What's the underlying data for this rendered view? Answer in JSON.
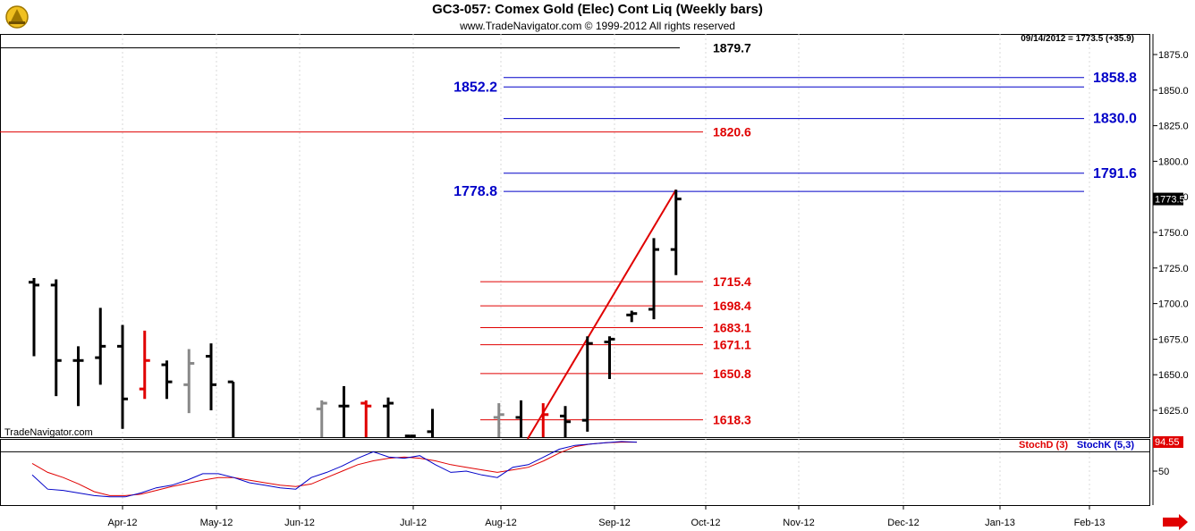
{
  "header": {
    "title": "GC3-057:  Comex Gold (Elec) Cont Liq  (Weekly bars)",
    "copyright": "www.TradeNavigator.com © 1999-2012 All rights reserved",
    "quote_info": "09/14/2012 = 1773.5 (+35.9)",
    "watermark": "TradeNavigator.com"
  },
  "colors": {
    "up_bar": "#000000",
    "red_bar": "#e00000",
    "gray_bar": "#888888",
    "fib_red": "#e00000",
    "fib_blue": "#0000c8",
    "stochD": "#e00000",
    "stochK": "#0000c8",
    "grid": "#d8d8d8"
  },
  "chart_data": [
    {
      "type": "ohlc",
      "title": "GC3-057:  Comex Gold (Elec) Cont Liq  (Weekly bars)",
      "y_axis": {
        "ticks": [
          "1875.0",
          "1850.0",
          "1825.0",
          "1800.0",
          "1775.0",
          "1750.0",
          "1725.0",
          "1700.0",
          "1675.0",
          "1650.0",
          "1625.0"
        ],
        "range": [
          1605,
          1890
        ],
        "last_price_label": "1773.5"
      },
      "x_axis": {
        "labels": [
          "Apr-12",
          "May-12",
          "Jun-12",
          "Jul-12",
          "Aug-12",
          "Sep-12",
          "Oct-12",
          "Nov-12",
          "Dec-12",
          "Jan-13",
          "Feb-13"
        ]
      },
      "bars": [
        {
          "w": 0,
          "o": 1715,
          "h": 1718,
          "l": 1663,
          "c": 1713,
          "color": "black"
        },
        {
          "w": 1,
          "o": 1713,
          "h": 1717,
          "l": 1635,
          "c": 1660,
          "color": "black"
        },
        {
          "w": 2,
          "o": 1660,
          "h": 1670,
          "l": 1628,
          "c": 1660,
          "color": "black"
        },
        {
          "w": 3,
          "o": 1662,
          "h": 1697,
          "l": 1643,
          "c": 1670,
          "color": "black"
        },
        {
          "w": 4,
          "o": 1670,
          "h": 1685,
          "l": 1612,
          "c": 1633,
          "color": "black"
        },
        {
          "w": 5,
          "o": 1640,
          "h": 1681,
          "l": 1633,
          "c": 1660,
          "color": "red"
        },
        {
          "w": 6,
          "o": 1657,
          "h": 1660,
          "l": 1633,
          "c": 1645,
          "color": "black"
        },
        {
          "w": 7,
          "o": 1643,
          "h": 1668,
          "l": 1623,
          "c": 1658,
          "color": "gray"
        },
        {
          "w": 8,
          "o": 1663,
          "h": 1672,
          "l": 1625,
          "c": 1643,
          "color": "black"
        },
        {
          "w": 9,
          "o": 1645,
          "h": 1645,
          "l": 1605,
          "c": 1605,
          "color": "black"
        },
        {
          "w": 13,
          "o": 1626,
          "h": 1632,
          "l": 1605,
          "c": 1630,
          "color": "gray"
        },
        {
          "w": 14,
          "o": 1628,
          "h": 1642,
          "l": 1605,
          "c": 1628,
          "color": "black"
        },
        {
          "w": 15,
          "o": 1630,
          "h": 1632,
          "l": 1605,
          "c": 1628,
          "color": "red"
        },
        {
          "w": 16,
          "o": 1628,
          "h": 1634,
          "l": 1605,
          "c": 1630,
          "color": "black"
        },
        {
          "w": 17,
          "o": 1607,
          "h": 1607,
          "l": 1605,
          "c": 1607,
          "color": "black"
        },
        {
          "w": 18,
          "o": 1610,
          "h": 1626,
          "l": 1605,
          "c": 1605,
          "color": "black"
        },
        {
          "w": 21,
          "o": 1620,
          "h": 1630,
          "l": 1605,
          "c": 1622,
          "color": "gray"
        },
        {
          "w": 22,
          "o": 1620,
          "h": 1632,
          "l": 1605,
          "c": 1606,
          "color": "black"
        },
        {
          "w": 23,
          "o": 1605,
          "h": 1630,
          "l": 1605,
          "c": 1622,
          "color": "red"
        },
        {
          "w": 24,
          "o": 1621,
          "h": 1628,
          "l": 1605,
          "c": 1617,
          "color": "black"
        },
        {
          "w": 25,
          "o": 1618,
          "h": 1677,
          "l": 1610,
          "c": 1672,
          "color": "black"
        },
        {
          "w": 26,
          "o": 1673,
          "h": 1677,
          "l": 1647,
          "c": 1675,
          "color": "black"
        },
        {
          "w": 27,
          "o": 1692,
          "h": 1695,
          "l": 1687,
          "c": 1693,
          "color": "black"
        },
        {
          "w": 28,
          "o": 1696,
          "h": 1746,
          "l": 1689,
          "c": 1738,
          "color": "black"
        },
        {
          "w": 29,
          "o": 1738,
          "h": 1780,
          "l": 1720,
          "c": 1773.5,
          "color": "black"
        }
      ],
      "fib_levels": [
        {
          "value": "1879.7",
          "label": "1879.7",
          "color": "black"
        },
        {
          "value": "1858.8",
          "label": "1858.8",
          "color": "blue"
        },
        {
          "value": "1852.2",
          "label": "1852.2",
          "color": "blue"
        },
        {
          "value": "1830.0",
          "label": "1830.0",
          "color": "blue"
        },
        {
          "value": "1820.6",
          "label": "1820.6",
          "color": "red"
        },
        {
          "value": "1791.6",
          "label": "1791.6",
          "color": "blue"
        },
        {
          "value": "1778.8",
          "label": "1778.8",
          "color": "blue"
        },
        {
          "value": "1715.4",
          "label": "1715.4",
          "color": "red"
        },
        {
          "value": "1698.4",
          "label": "1698.4",
          "color": "red"
        },
        {
          "value": "1683.1",
          "label": "1683.1",
          "color": "red"
        },
        {
          "value": "1671.1",
          "label": "1671.1",
          "color": "red"
        },
        {
          "value": "1650.8",
          "label": "1650.8",
          "color": "red"
        },
        {
          "value": "1618.3",
          "label": "1618.3",
          "color": "red"
        }
      ],
      "trendline": {
        "from": {
          "w": 22.3,
          "price": 1605
        },
        "to": {
          "w": 29,
          "price": 1780
        }
      }
    },
    {
      "type": "line",
      "title": "",
      "legend": [
        {
          "name": "StochD (3)",
          "color": "red"
        },
        {
          "name": "StochK (5,3)",
          "color": "blue"
        }
      ],
      "y_axis": {
        "ticks": [
          "50"
        ],
        "range": [
          0,
          100
        ],
        "last_value_label": "94.55"
      },
      "series": [
        {
          "name": "StochD (3)",
          "values": [
            62,
            48,
            40,
            30,
            18,
            12,
            12,
            14,
            20,
            26,
            31,
            36,
            40,
            40,
            36,
            32,
            28,
            26,
            30,
            40,
            50,
            60,
            66,
            70,
            72,
            70,
            66,
            60,
            56,
            52,
            48,
            52,
            56,
            66,
            78,
            88,
            92,
            94,
            95,
            95
          ]
        },
        {
          "name": "StochK (5,3)",
          "values": [
            44,
            22,
            20,
            16,
            12,
            10,
            10,
            16,
            24,
            28,
            36,
            46,
            46,
            40,
            32,
            28,
            24,
            22,
            40,
            48,
            58,
            70,
            80,
            72,
            70,
            74,
            60,
            48,
            50,
            44,
            40,
            56,
            60,
            72,
            84,
            90,
            92,
            94,
            96,
            95
          ]
        }
      ]
    }
  ]
}
